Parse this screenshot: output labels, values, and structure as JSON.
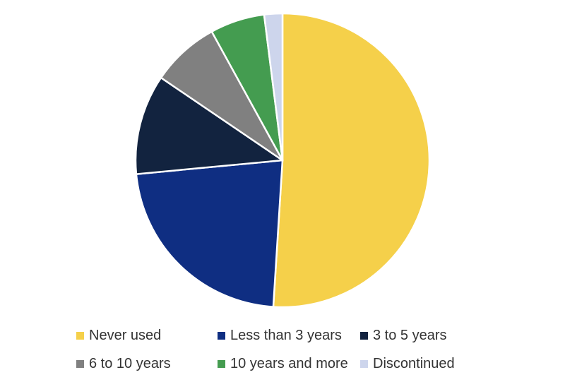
{
  "chart_data": {
    "type": "pie",
    "title": "",
    "categories": [
      "Never used",
      "Less than 3 years",
      "3 to 5 years",
      "6 to 10 years",
      "10 years and more",
      "Discontinued"
    ],
    "values": [
      51.0,
      22.5,
      11.0,
      7.5,
      6.0,
      2.0
    ],
    "unit": "percent (estimated)",
    "colors": [
      "#F5D04A",
      "#0F2E82",
      "#12233F",
      "#808080",
      "#449C50",
      "#CDD5EC"
    ],
    "start_angle_deg": 0,
    "direction": "clockwise",
    "legend_position": "bottom",
    "slice_border_color": "#ffffff"
  }
}
